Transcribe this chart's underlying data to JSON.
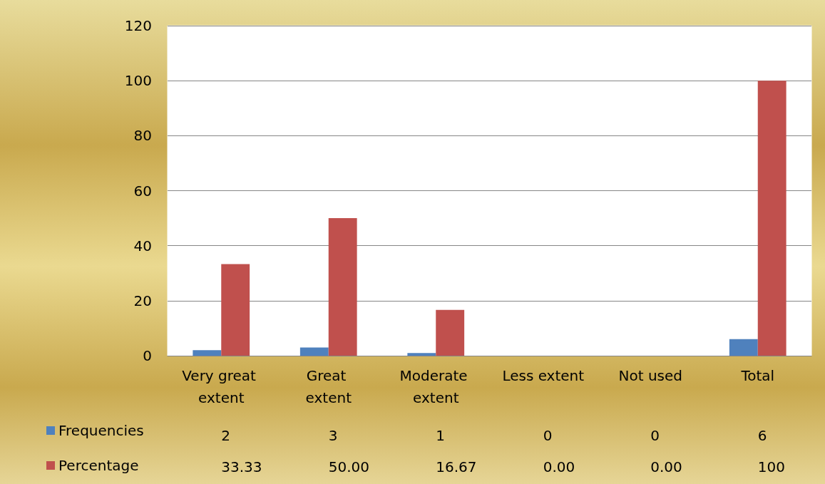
{
  "chart_data": {
    "type": "bar",
    "categories": [
      "Very great extent",
      "Great extent",
      "Moderate extent",
      "Less extent",
      "Not used",
      "Total"
    ],
    "series": [
      {
        "name": "Frequencies",
        "color": "#4f81bd",
        "values": [
          2,
          3,
          1,
          0,
          0,
          6
        ],
        "value_labels": [
          "2",
          "3",
          "1",
          "0",
          "0",
          "6"
        ]
      },
      {
        "name": "Percentage",
        "color": "#c0504d",
        "values": [
          33.33,
          50,
          16.67,
          0,
          0,
          100
        ],
        "value_labels": [
          "33.33",
          "50.00",
          "16.67",
          "0.00",
          "0.00",
          "100"
        ]
      }
    ],
    "ylim": [
      0,
      120
    ],
    "yticks": [
      0,
      20,
      40,
      60,
      80,
      100,
      120
    ],
    "grid": "y",
    "legend": "bottom"
  }
}
